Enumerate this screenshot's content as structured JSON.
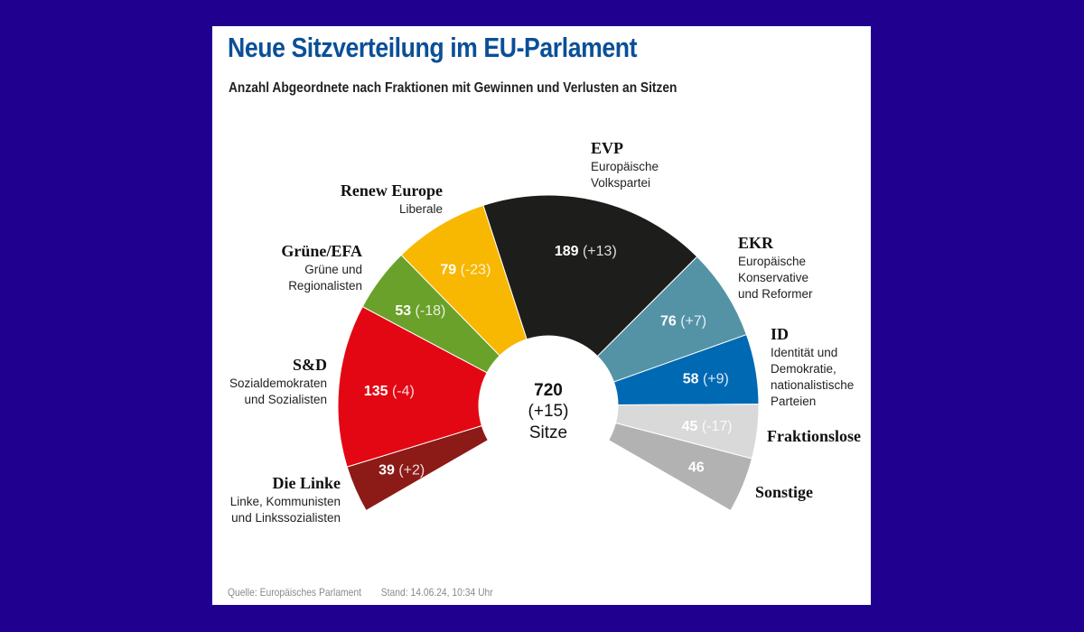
{
  "chart_data": {
    "type": "pie",
    "subtype": "parliament-semicircle",
    "title": "Neue Sitzverteilung im EU-Parlament",
    "subtitle": "Anzahl Abgeordnete nach Fraktionen mit Gewinnen und Verlusten an Sitzen",
    "arc_degrees": 240,
    "total": {
      "value": "720",
      "change": "(+15)",
      "unit": "Sitze"
    },
    "series": [
      {
        "name": "Die Linke",
        "desc": [
          "Linke, Kommunisten",
          "und Linkssozialisten"
        ],
        "value": 39,
        "change": "(+2)",
        "color": "#8c1a17",
        "text_color": "#ffffff"
      },
      {
        "name": "S&D",
        "desc": [
          "Sozialdemokraten",
          "und Sozialisten"
        ],
        "value": 135,
        "change": "(-4)",
        "color": "#e30613",
        "text_color": "#ffffff"
      },
      {
        "name": "Grüne/EFA",
        "desc": [
          "Grüne und",
          "Regionalisten"
        ],
        "value": 53,
        "change": "(-18)",
        "color": "#6aa12a",
        "text_color": "#ffffff"
      },
      {
        "name": "Renew Europe",
        "desc": [
          "Liberale"
        ],
        "value": 79,
        "change": "(-23)",
        "color": "#f8b700",
        "text_color": "#ffffff"
      },
      {
        "name": "EVP",
        "desc": [
          "Europäische",
          "Volkspartei"
        ],
        "value": 189,
        "change": "(+13)",
        "color": "#1d1d1b",
        "text_color": "#ffffff"
      },
      {
        "name": "EKR",
        "desc": [
          "Europäische",
          "Konservative",
          "und Reformer"
        ],
        "value": 76,
        "change": "(+7)",
        "color": "#5393a5",
        "text_color": "#ffffff"
      },
      {
        "name": "ID",
        "desc": [
          "Identität und",
          "Demokratie,",
          "nationalistische",
          "Parteien"
        ],
        "value": 58,
        "change": "(+9)",
        "color": "#0069b4",
        "text_color": "#ffffff"
      },
      {
        "name": "Fraktionslose",
        "desc": [],
        "value": 45,
        "change": "(-17)",
        "color": "#d9d9d9",
        "text_color": "#ffffff"
      },
      {
        "name": "Sonstige",
        "desc": [],
        "value": 46,
        "change": "",
        "color": "#b2b2b2",
        "text_color": "#ffffff"
      }
    ]
  },
  "header": {
    "title": "Neue Sitzverteilung im EU-Parlament",
    "subtitle": "Anzahl Abgeordnete nach Fraktionen mit Gewinnen und Verlusten an Sitzen"
  },
  "footer": {
    "source": "Quelle: Europäisches Parlament",
    "date": "Stand: 14.06.24, 10:34 Uhr"
  }
}
